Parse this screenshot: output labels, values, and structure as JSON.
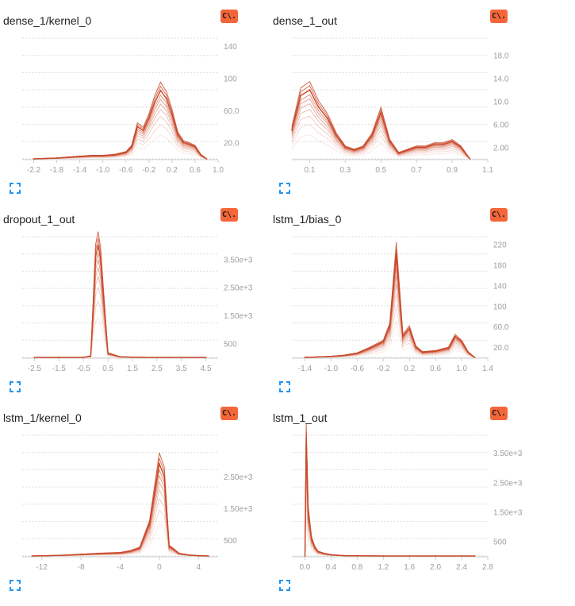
{
  "colors": {
    "line": "#c9492a",
    "badge": "#f4663a",
    "grid": "#dddddd",
    "tick": "#9e9e9e",
    "expand": "#2196f3"
  },
  "badge_text": "C\\.",
  "charts": [
    {
      "title": "dense_1/kernel_0",
      "chart_data": {
        "type": "line",
        "title": "dense_1/kernel_0",
        "xlim": [
          -2.4,
          1.0
        ],
        "ylim": [
          0,
          150
        ],
        "xticks": [
          "-2.2",
          "-1.8",
          "-1.4",
          "-1.0",
          "-0.6",
          "-0.2",
          "0.2",
          "0.6",
          "1.0"
        ],
        "xtick_values": [
          -2.2,
          -1.8,
          -1.4,
          -1.0,
          -0.6,
          -0.2,
          0.2,
          0.6,
          1.0
        ],
        "yticks": [
          "20.0",
          "60.0",
          "100",
          "140"
        ],
        "ytick_values": [
          20,
          60,
          100,
          140
        ],
        "x": [
          -2.2,
          -1.8,
          -1.4,
          -1.2,
          -1.0,
          -0.8,
          -0.6,
          -0.5,
          -0.4,
          -0.3,
          -0.2,
          -0.1,
          0.0,
          0.1,
          0.2,
          0.3,
          0.4,
          0.5,
          0.6,
          0.7,
          0.8
        ],
        "y": [
          0,
          1,
          3,
          4,
          4,
          5,
          8,
          15,
          40,
          35,
          50,
          70,
          85,
          75,
          55,
          30,
          20,
          18,
          15,
          5,
          0
        ]
      }
    },
    {
      "title": "dense_1_out",
      "chart_data": {
        "type": "line",
        "title": "dense_1_out",
        "xlim": [
          0,
          1.1
        ],
        "ylim": [
          0,
          21
        ],
        "xticks": [
          "0.1",
          "0.3",
          "0.5",
          "0.7",
          "0.9",
          "1.1"
        ],
        "xtick_values": [
          0.1,
          0.3,
          0.5,
          0.7,
          0.9,
          1.1
        ],
        "yticks": [
          "2.00",
          "6.00",
          "10.0",
          "14.0",
          "18.0"
        ],
        "ytick_values": [
          2,
          6,
          10,
          14,
          18
        ],
        "x": [
          0.0,
          0.05,
          0.1,
          0.15,
          0.2,
          0.25,
          0.3,
          0.35,
          0.4,
          0.45,
          0.5,
          0.55,
          0.6,
          0.65,
          0.7,
          0.75,
          0.8,
          0.85,
          0.9,
          0.95,
          1.0
        ],
        "y": [
          5,
          11,
          12,
          9,
          7,
          4,
          2,
          1.5,
          2,
          4,
          8,
          3,
          1,
          1.5,
          2,
          2,
          2.5,
          2.5,
          3,
          2,
          0
        ]
      }
    },
    {
      "title": "dropout_1_out",
      "chart_data": {
        "type": "line",
        "title": "dropout_1_out",
        "xlim": [
          -3.0,
          5.0
        ],
        "ylim": [
          0,
          4300
        ],
        "xticks": [
          "-2.5",
          "-1.5",
          "-0.5",
          "0.5",
          "1.5",
          "2.5",
          "3.5",
          "4.5"
        ],
        "xtick_values": [
          -2.5,
          -1.5,
          -0.5,
          0.5,
          1.5,
          2.5,
          3.5,
          4.5
        ],
        "yticks": [
          "500",
          "1.50e+3",
          "2.50e+3",
          "3.50e+3"
        ],
        "ytick_values": [
          500,
          1500,
          2500,
          3500
        ],
        "x": [
          -2.5,
          -1.5,
          -0.5,
          -0.2,
          0.0,
          0.1,
          0.2,
          0.5,
          1.0,
          2.0,
          3.0,
          4.0,
          4.5
        ],
        "y": [
          0,
          0,
          0,
          50,
          3600,
          4000,
          3500,
          150,
          20,
          0,
          0,
          0,
          0
        ]
      }
    },
    {
      "title": "lstm_1/bias_0",
      "chart_data": {
        "type": "line",
        "title": "lstm_1/bias_0",
        "xlim": [
          -1.6,
          1.4
        ],
        "ylim": [
          0,
          235
        ],
        "xticks": [
          "-1.4",
          "-1.0",
          "-0.6",
          "-0.2",
          "0.2",
          "0.6",
          "1.0",
          "1.4"
        ],
        "xtick_values": [
          -1.4,
          -1.0,
          -0.6,
          -0.2,
          0.2,
          0.6,
          1.0,
          1.4
        ],
        "yticks": [
          "20.0",
          "60.0",
          "100",
          "140",
          "180",
          "220"
        ],
        "ytick_values": [
          20,
          60,
          100,
          140,
          180,
          220
        ],
        "x": [
          -1.4,
          -1.2,
          -1.0,
          -0.8,
          -0.6,
          -0.4,
          -0.2,
          -0.1,
          0.0,
          0.1,
          0.2,
          0.3,
          0.4,
          0.6,
          0.8,
          0.9,
          1.0,
          1.1,
          1.2
        ],
        "y": [
          0,
          1,
          2,
          4,
          8,
          18,
          30,
          60,
          200,
          40,
          55,
          20,
          10,
          12,
          18,
          40,
          30,
          10,
          0
        ]
      }
    },
    {
      "title": "lstm_1/kernel_0",
      "chart_data": {
        "type": "line",
        "title": "lstm_1/kernel_0",
        "xlim": [
          -14,
          6
        ],
        "ylim": [
          0,
          3800
        ],
        "xticks": [
          "-12",
          "-8",
          "-4",
          "0",
          "4"
        ],
        "xtick_values": [
          -12,
          -8,
          -4,
          0,
          4
        ],
        "yticks": [
          "500",
          "1.50e+3",
          "2.50e+3"
        ],
        "ytick_values": [
          500,
          1500,
          2500
        ],
        "x": [
          -13,
          -10,
          -8,
          -6,
          -4,
          -3,
          -2,
          -1,
          0,
          0.5,
          1,
          1.5,
          2,
          3,
          4,
          5
        ],
        "y": [
          0,
          20,
          50,
          80,
          100,
          150,
          250,
          1000,
          2900,
          2500,
          300,
          200,
          80,
          30,
          10,
          0
        ]
      }
    },
    {
      "title": "lstm_1_out",
      "chart_data": {
        "type": "line",
        "title": "lstm_1_out",
        "xlim": [
          -0.2,
          2.8
        ],
        "ylim": [
          0,
          4100
        ],
        "xticks": [
          "0.0",
          "0.4",
          "0.8",
          "1.2",
          "1.6",
          "2.0",
          "2.4",
          "2.8"
        ],
        "xtick_values": [
          0.0,
          0.4,
          0.8,
          1.2,
          1.6,
          2.0,
          2.4,
          2.8
        ],
        "yticks": [
          "500",
          "1.50e+3",
          "2.50e+3",
          "3.50e+3"
        ],
        "ytick_values": [
          500,
          1500,
          2500,
          3500
        ],
        "x": [
          0.0,
          0.02,
          0.05,
          0.1,
          0.15,
          0.2,
          0.3,
          0.4,
          0.6,
          0.8,
          1.2,
          1.6,
          2.0,
          2.4,
          2.6
        ],
        "y": [
          0,
          4000,
          1500,
          600,
          300,
          150,
          80,
          40,
          10,
          5,
          0,
          0,
          0,
          0,
          0
        ]
      }
    }
  ]
}
